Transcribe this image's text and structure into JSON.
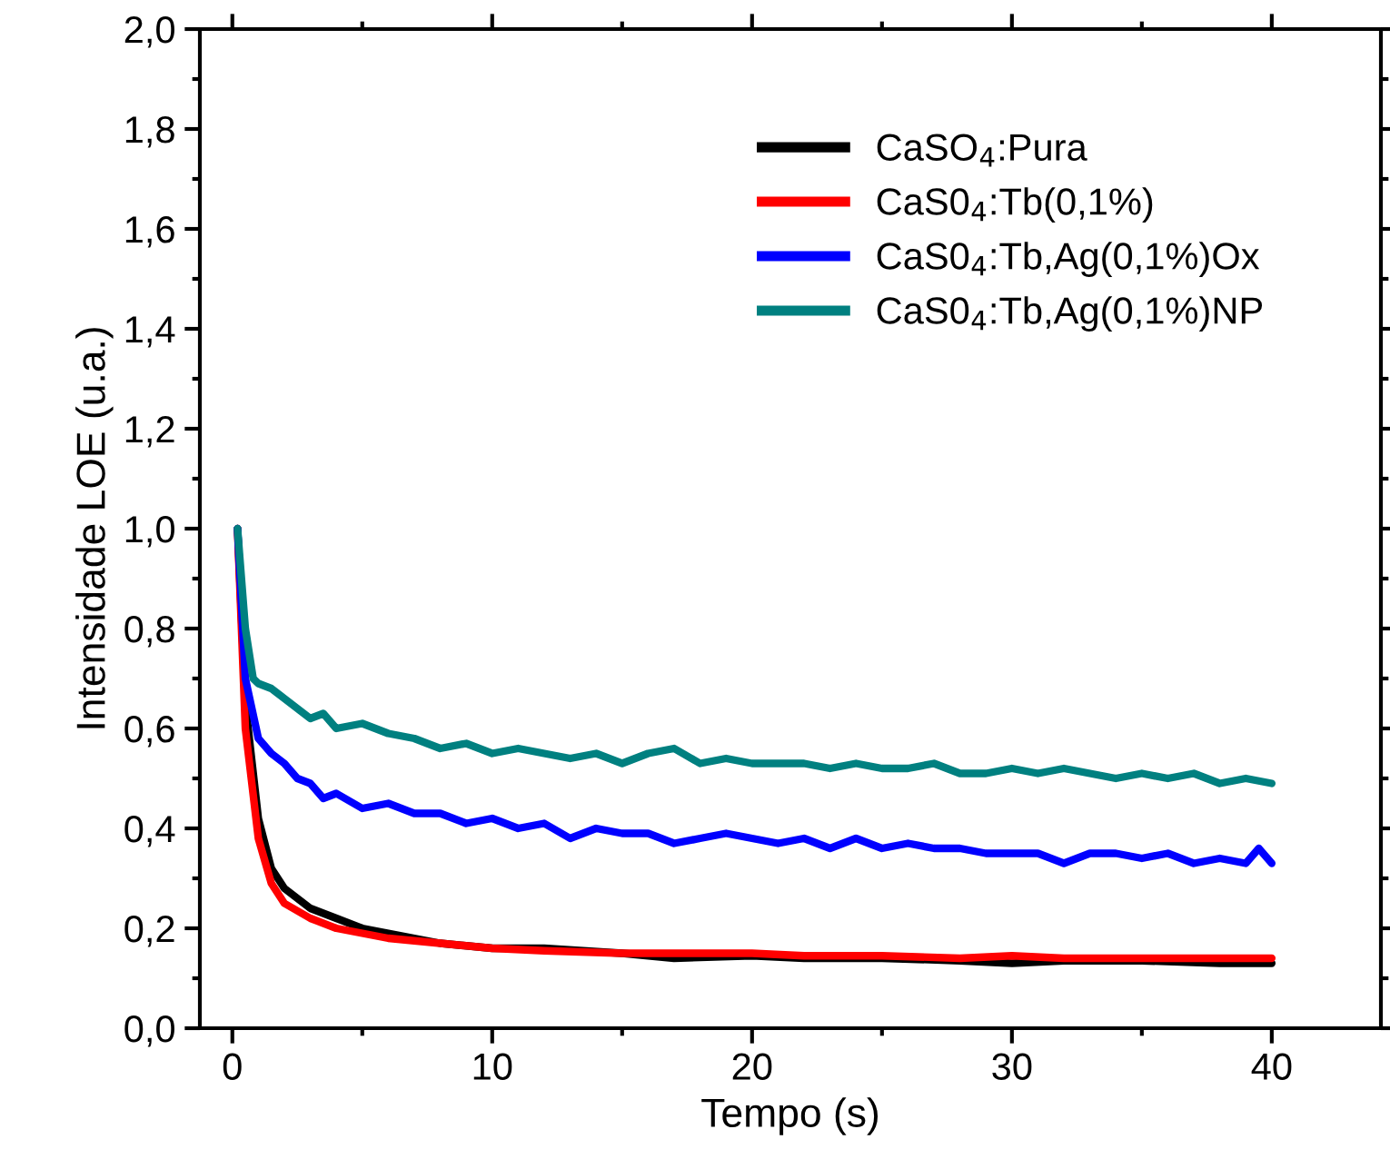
{
  "chart_data": {
    "type": "line",
    "xlabel": "Tempo (s)",
    "ylabel": "Intensidade LOE (u.a.)",
    "xlim": [
      -1.25,
      44.2
    ],
    "xticks": [
      0,
      10,
      20,
      30,
      40
    ],
    "ylim": [
      0,
      2.0
    ],
    "yticks": [
      {
        "value": 0,
        "label": "0,0"
      },
      {
        "value": 0.2,
        "label": "0,2"
      },
      {
        "value": 0.4,
        "label": "0,4"
      },
      {
        "value": 0.6,
        "label": "0,6"
      },
      {
        "value": 0.8,
        "label": "0,8"
      },
      {
        "value": 1.0,
        "label": "1,0"
      },
      {
        "value": 1.2,
        "label": "1,2"
      },
      {
        "value": 1.4,
        "label": "1,4"
      },
      {
        "value": 1.6,
        "label": "1,6"
      },
      {
        "value": 1.8,
        "label": "1,8"
      },
      {
        "value": 2.0,
        "label": "2,0"
      }
    ],
    "grid": false,
    "legend": "top right",
    "line_style": "solid",
    "marker": "none",
    "series": [
      {
        "name": "CaSO$_{4}$:Pura",
        "color": "#000000",
        "x": [
          0.2,
          0.5,
          1,
          1.5,
          2,
          3,
          4,
          5,
          6,
          8,
          10,
          12,
          15,
          17,
          20,
          22,
          25,
          28,
          30,
          32,
          35,
          38,
          40
        ],
        "values": [
          1.0,
          0.65,
          0.42,
          0.32,
          0.28,
          0.24,
          0.22,
          0.2,
          0.19,
          0.17,
          0.16,
          0.16,
          0.15,
          0.14,
          0.145,
          0.14,
          0.14,
          0.135,
          0.13,
          0.135,
          0.135,
          0.13,
          0.13
        ]
      },
      {
        "name": "CaS0$_{4}$:Tb(0,1%)",
        "color": "#ff0000",
        "x": [
          0.2,
          0.5,
          1,
          1.5,
          2,
          3,
          4,
          5,
          6,
          8,
          10,
          12,
          15,
          17,
          20,
          22,
          25,
          28,
          30,
          32,
          35,
          38,
          40
        ],
        "values": [
          1.0,
          0.6,
          0.38,
          0.29,
          0.25,
          0.22,
          0.2,
          0.19,
          0.18,
          0.17,
          0.16,
          0.155,
          0.15,
          0.15,
          0.15,
          0.145,
          0.145,
          0.14,
          0.145,
          0.14,
          0.14,
          0.14,
          0.14
        ]
      },
      {
        "name": "CaS0$_{4}$:Tb,Ag(0,1%)Ox",
        "color": "#0000ff",
        "x": [
          0.2,
          0.5,
          1,
          1.5,
          2,
          2.5,
          3,
          3.5,
          4,
          5,
          6,
          7,
          8,
          9,
          10,
          11,
          12,
          13,
          14,
          15,
          16,
          17,
          18,
          19,
          20,
          21,
          22,
          23,
          24,
          25,
          26,
          27,
          28,
          29,
          30,
          31,
          32,
          33,
          34,
          35,
          36,
          37,
          38,
          39,
          39.5,
          40
        ],
        "values": [
          1.0,
          0.7,
          0.58,
          0.55,
          0.53,
          0.5,
          0.49,
          0.46,
          0.47,
          0.44,
          0.45,
          0.43,
          0.43,
          0.41,
          0.42,
          0.4,
          0.41,
          0.38,
          0.4,
          0.39,
          0.39,
          0.37,
          0.38,
          0.39,
          0.38,
          0.37,
          0.38,
          0.36,
          0.38,
          0.36,
          0.37,
          0.36,
          0.36,
          0.35,
          0.35,
          0.35,
          0.33,
          0.35,
          0.35,
          0.34,
          0.35,
          0.33,
          0.34,
          0.33,
          0.36,
          0.33
        ]
      },
      {
        "name": "CaS0$_{4}$:Tb,Ag(0,1%)NP",
        "color": "#008080",
        "x": [
          0.2,
          0.5,
          0.8,
          1,
          1.5,
          2,
          2.5,
          3,
          3.5,
          4,
          5,
          6,
          7,
          8,
          9,
          10,
          11,
          12,
          13,
          14,
          15,
          16,
          17,
          18,
          19,
          20,
          21,
          22,
          23,
          24,
          25,
          26,
          27,
          28,
          29,
          30,
          31,
          32,
          33,
          34,
          35,
          36,
          37,
          38,
          39,
          40
        ],
        "values": [
          1.0,
          0.8,
          0.7,
          0.69,
          0.68,
          0.66,
          0.64,
          0.62,
          0.63,
          0.6,
          0.61,
          0.59,
          0.58,
          0.56,
          0.57,
          0.55,
          0.56,
          0.55,
          0.54,
          0.55,
          0.53,
          0.55,
          0.56,
          0.53,
          0.54,
          0.53,
          0.53,
          0.53,
          0.52,
          0.53,
          0.52,
          0.52,
          0.53,
          0.51,
          0.51,
          0.52,
          0.51,
          0.52,
          0.51,
          0.5,
          0.51,
          0.5,
          0.51,
          0.49,
          0.5,
          0.49
        ]
      }
    ]
  }
}
